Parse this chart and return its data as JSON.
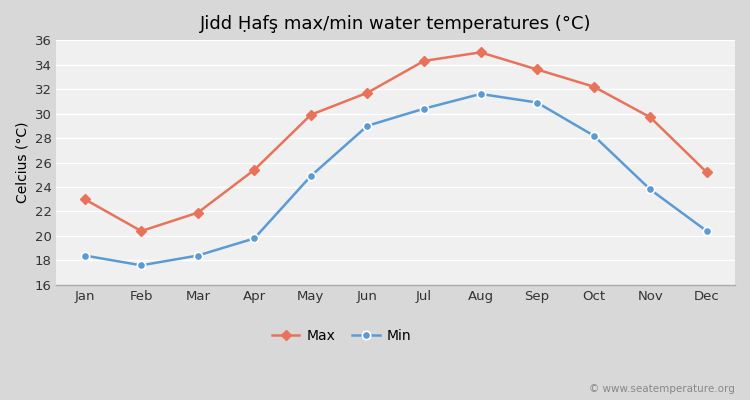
{
  "title": "Jidd Ḥafş max/min water temperatures (°C)",
  "ylabel": "Celcius (°C)",
  "months": [
    "Jan",
    "Feb",
    "Mar",
    "Apr",
    "May",
    "Jun",
    "Jul",
    "Aug",
    "Sep",
    "Oct",
    "Nov",
    "Dec"
  ],
  "max_values": [
    23.0,
    20.4,
    21.9,
    25.4,
    29.9,
    31.7,
    34.3,
    35.0,
    33.6,
    32.2,
    29.7,
    25.2
  ],
  "min_values": [
    18.4,
    17.6,
    18.4,
    19.8,
    24.9,
    29.0,
    30.4,
    31.6,
    30.9,
    28.2,
    23.8,
    20.4
  ],
  "max_color": "#e8735a",
  "min_color": "#5b9bd5",
  "fig_bg_color": "#d8d8d8",
  "plot_bg_color": "#f0f0f0",
  "grid_color": "#ffffff",
  "ylim": [
    16,
    36
  ],
  "yticks": [
    16,
    18,
    20,
    22,
    24,
    26,
    28,
    30,
    32,
    34,
    36
  ],
  "legend_max": "Max",
  "legend_min": "Min",
  "watermark": "© www.seatemperature.org",
  "title_fontsize": 13,
  "label_fontsize": 10,
  "tick_fontsize": 9.5
}
